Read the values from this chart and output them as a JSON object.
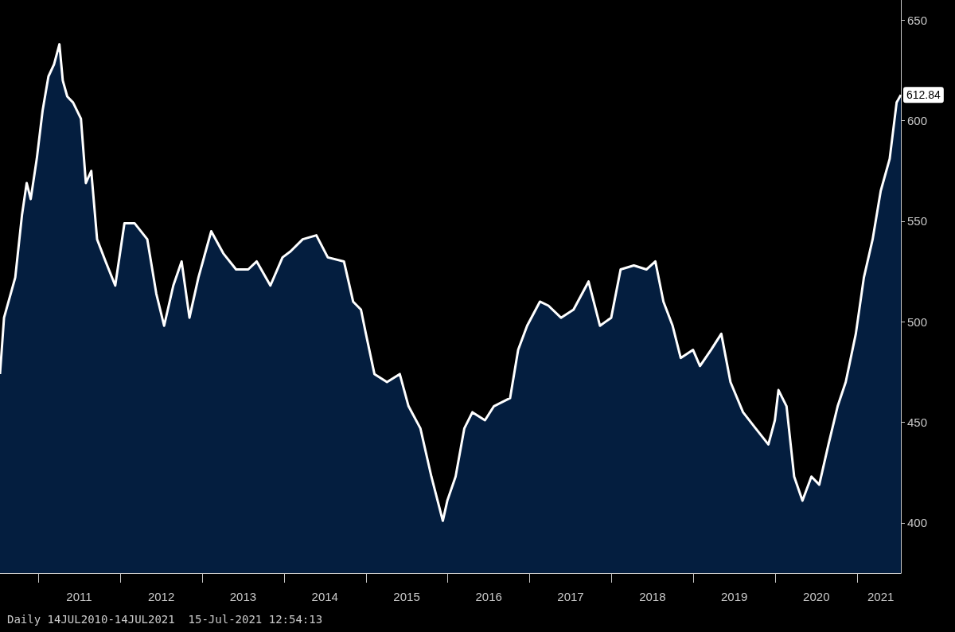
{
  "chart_data": {
    "type": "area",
    "x": [
      "2010-07-14",
      "2010-08-01",
      "2010-09-20",
      "2010-10-20",
      "2010-11-10",
      "2010-11-28",
      "2010-12-25",
      "2011-01-20",
      "2011-02-15",
      "2011-03-12",
      "2011-04-05",
      "2011-04-20",
      "2011-05-10",
      "2011-06-05",
      "2011-07-10",
      "2011-08-01",
      "2011-08-25",
      "2011-09-20",
      "2011-10-28",
      "2011-12-10",
      "2012-01-20",
      "2012-03-05",
      "2012-05-01",
      "2012-06-10",
      "2012-07-15",
      "2012-08-25",
      "2012-10-01",
      "2012-11-05",
      "2012-12-15",
      "2013-02-10",
      "2013-04-05",
      "2013-06-01",
      "2013-07-25",
      "2013-09-01",
      "2013-11-01",
      "2013-12-25",
      "2014-01-30",
      "2014-03-25",
      "2014-05-25",
      "2014-07-15",
      "2014-09-25",
      "2014-11-05",
      "2014-12-10",
      "2015-01-01",
      "2015-02-08",
      "2015-04-05",
      "2015-06-01",
      "2015-07-10",
      "2015-09-01",
      "2015-10-20",
      "2015-12-10",
      "2015-12-30",
      "2016-02-05",
      "2016-03-15",
      "2016-04-20",
      "2016-06-15",
      "2016-07-25",
      "2016-10-05",
      "2016-11-10",
      "2016-12-20",
      "2017-02-15",
      "2017-03-25",
      "2017-05-20",
      "2017-07-15",
      "2017-09-20",
      "2017-11-10",
      "2017-12-30",
      "2018-02-10",
      "2018-04-10",
      "2018-06-05",
      "2018-07-15",
      "2018-08-20",
      "2018-09-30",
      "2018-11-05",
      "2018-12-30",
      "2019-01-30",
      "2019-03-20",
      "2019-05-05",
      "2019-06-15",
      "2019-08-10",
      "2019-10-05",
      "2019-12-01",
      "2019-12-30",
      "2020-01-15",
      "2020-02-20",
      "2020-03-25",
      "2020-05-01",
      "2020-06-10",
      "2020-07-15",
      "2020-08-25",
      "2020-10-05",
      "2020-11-10",
      "2020-12-25",
      "2021-01-30",
      "2021-03-10",
      "2021-04-15",
      "2021-05-25",
      "2021-06-25",
      "2021-07-14"
    ],
    "series": [
      {
        "color": "#ffffff",
        "values": [
          474,
          502,
          522,
          553,
          569,
          561,
          581,
          605,
          622,
          628,
          638,
          620,
          612,
          609,
          601,
          569,
          575,
          541,
          530,
          518,
          549,
          549,
          541,
          514,
          498,
          518,
          530,
          502,
          522,
          545,
          534,
          526,
          526,
          530,
          518,
          532,
          535,
          541,
          543,
          532,
          530,
          510,
          506,
          494,
          474,
          470,
          474,
          458,
          447,
          423,
          401,
          411,
          423,
          447,
          455,
          451,
          458,
          462,
          486,
          498,
          510,
          508,
          502,
          506,
          520,
          498,
          502,
          526,
          528,
          526,
          530,
          510,
          498,
          482,
          486,
          478,
          486,
          494,
          470,
          455,
          447,
          439,
          451,
          466,
          458,
          423,
          411,
          423,
          419,
          439,
          458,
          470,
          494,
          522,
          541,
          565,
          581,
          609,
          612.84
        ]
      }
    ],
    "xlim": [
      "2010-07-14",
      "2021-07-14"
    ],
    "xticks": [
      {
        "value": "2011-01-01",
        "label": null
      },
      {
        "value": "2011-07-02",
        "label": "2011"
      },
      {
        "value": "2012-01-01",
        "label": null
      },
      {
        "value": "2012-07-02",
        "label": "2012"
      },
      {
        "value": "2013-01-01",
        "label": null
      },
      {
        "value": "2013-07-02",
        "label": "2013"
      },
      {
        "value": "2014-01-01",
        "label": null
      },
      {
        "value": "2014-07-02",
        "label": "2014"
      },
      {
        "value": "2015-01-01",
        "label": null
      },
      {
        "value": "2015-07-02",
        "label": "2015"
      },
      {
        "value": "2016-01-01",
        "label": null
      },
      {
        "value": "2016-07-02",
        "label": "2016"
      },
      {
        "value": "2017-01-01",
        "label": null
      },
      {
        "value": "2017-07-02",
        "label": "2017"
      },
      {
        "value": "2018-01-01",
        "label": null
      },
      {
        "value": "2018-07-02",
        "label": "2018"
      },
      {
        "value": "2019-01-01",
        "label": null
      },
      {
        "value": "2019-07-02",
        "label": "2019"
      },
      {
        "value": "2020-01-01",
        "label": null
      },
      {
        "value": "2020-07-02",
        "label": "2020"
      },
      {
        "value": "2021-01-01",
        "label": null
      },
      {
        "value": "2021-04-15",
        "label": "2021"
      }
    ],
    "ylim": [
      375,
      660
    ],
    "yticks": [
      400,
      450,
      500,
      550,
      600,
      650
    ],
    "grid": false,
    "marker": "none",
    "line_style": "solid",
    "annotations": [
      {
        "text": "612.84",
        "x": "2021-07-14",
        "y": 612.84
      },
      "Daily 14JUL2010-14JUL2021  15-Jul-2021 12:54:13"
    ]
  }
}
